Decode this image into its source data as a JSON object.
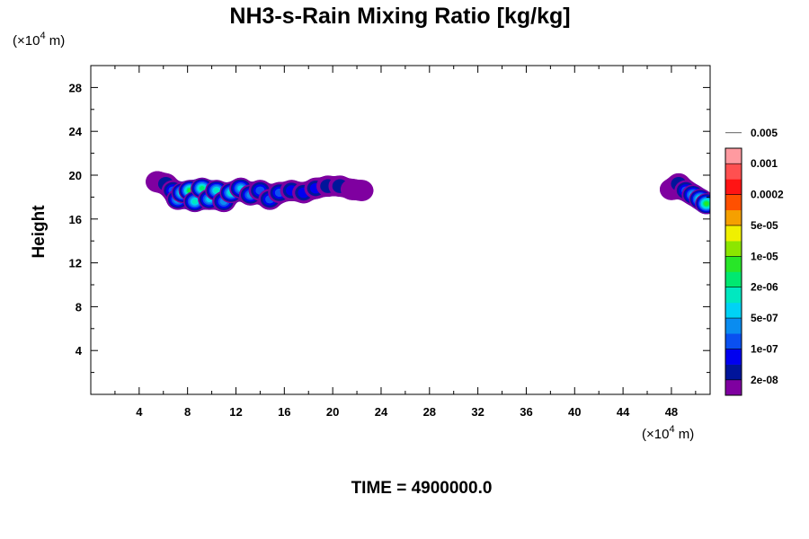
{
  "chart_data": {
    "type": "heatmap",
    "title": "NH3-s-Rain Mixing Ratio [kg/kg]",
    "ylabel": "Height",
    "x_unit": {
      "prefix": "(×10",
      "exp": "4",
      "suffix": " m)"
    },
    "y_unit": {
      "prefix": "(×10",
      "exp": "4",
      "suffix": " m)"
    },
    "xlim": [
      0,
      51.2
    ],
    "ylim": [
      0,
      30
    ],
    "x_ticks": [
      4,
      8,
      12,
      16,
      20,
      24,
      28,
      32,
      36,
      40,
      44,
      48
    ],
    "x_tick_labels": [
      "4",
      "8",
      "12",
      "16",
      "20",
      "24",
      "28",
      "32",
      "36",
      "40",
      "44",
      "48"
    ],
    "y_ticks": [
      4,
      8,
      12,
      16,
      20,
      24,
      28
    ],
    "y_tick_labels": [
      "4",
      "8",
      "12",
      "16",
      "20",
      "24",
      "28"
    ],
    "time_label": "TIME = 4900000.0",
    "colorbar": {
      "colors": [
        "#7f00a0",
        "#00149a",
        "#0000f0",
        "#0a50f0",
        "#0a8cf0",
        "#00d2f5",
        "#00e8c0",
        "#00e870",
        "#28e628",
        "#8ce600",
        "#f0f000",
        "#f5a000",
        "#ff5000",
        "#ff1414",
        "#ff5050",
        "#ff9aa0"
      ],
      "labels": [
        "2e-08",
        "1e-07",
        "5e-07",
        "2e-06",
        "1e-05",
        "5e-05",
        "0.0002",
        "0.001",
        "0.005"
      ]
    },
    "regions": [
      {
        "x_range": [
          5.0,
          22.8
        ],
        "y_range": [
          16.8,
          19.8
        ],
        "max_level": "1e-05 to 5e-05",
        "cells": [
          {
            "x": 5.5,
            "y": 19.4,
            "level": 0
          },
          {
            "x": 6.2,
            "y": 19.2,
            "level": 1
          },
          {
            "x": 6.8,
            "y": 18.6,
            "level": 3
          },
          {
            "x": 7.2,
            "y": 17.8,
            "level": 5
          },
          {
            "x": 7.6,
            "y": 18.4,
            "level": 7
          },
          {
            "x": 8.2,
            "y": 18.6,
            "level": 8
          },
          {
            "x": 8.6,
            "y": 17.6,
            "level": 6
          },
          {
            "x": 9.2,
            "y": 18.8,
            "level": 7
          },
          {
            "x": 9.8,
            "y": 17.8,
            "level": 5
          },
          {
            "x": 10.4,
            "y": 18.6,
            "level": 6
          },
          {
            "x": 11.0,
            "y": 17.6,
            "level": 4
          },
          {
            "x": 11.6,
            "y": 18.4,
            "level": 6
          },
          {
            "x": 12.4,
            "y": 18.8,
            "level": 5
          },
          {
            "x": 13.2,
            "y": 18.2,
            "level": 4
          },
          {
            "x": 14.0,
            "y": 18.6,
            "level": 3
          },
          {
            "x": 14.8,
            "y": 17.8,
            "level": 3
          },
          {
            "x": 15.6,
            "y": 18.4,
            "level": 3
          },
          {
            "x": 16.6,
            "y": 18.6,
            "level": 2
          },
          {
            "x": 17.6,
            "y": 18.4,
            "level": 2
          },
          {
            "x": 18.6,
            "y": 18.8,
            "level": 2
          },
          {
            "x": 19.6,
            "y": 19.0,
            "level": 1
          },
          {
            "x": 20.6,
            "y": 19.0,
            "level": 1
          },
          {
            "x": 21.6,
            "y": 18.7,
            "level": 0
          },
          {
            "x": 22.4,
            "y": 18.6,
            "level": 0
          }
        ]
      },
      {
        "x_range": [
          47.8,
          51.2
        ],
        "y_range": [
          16.8,
          19.8
        ],
        "max_level": "1e-05 to 5e-05",
        "cells": [
          {
            "x": 48.0,
            "y": 18.7,
            "level": 0
          },
          {
            "x": 48.6,
            "y": 19.2,
            "level": 1
          },
          {
            "x": 49.2,
            "y": 18.6,
            "level": 3
          },
          {
            "x": 49.8,
            "y": 18.2,
            "level": 5
          },
          {
            "x": 50.4,
            "y": 17.8,
            "level": 7
          },
          {
            "x": 50.9,
            "y": 17.4,
            "level": 8
          }
        ]
      }
    ]
  }
}
